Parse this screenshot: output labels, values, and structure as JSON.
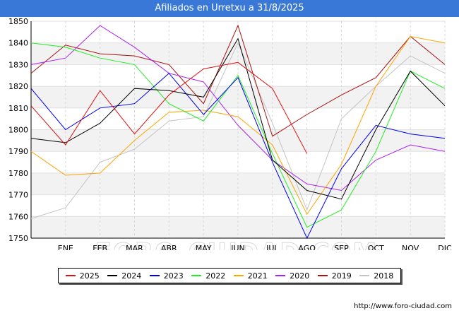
{
  "page": {
    "title": "Afiliados en Urretxu a 31/8/2025",
    "footer": "http://www.foro-ciudad.com",
    "watermark": "FORO-CIUDAD.COM"
  },
  "chart_data": {
    "type": "line",
    "title": "Afiliados en Urretxu a 31/8/2025",
    "xlabel": "",
    "ylabel": "",
    "categories": [
      "",
      "ENE",
      "FEB",
      "MAR",
      "ABR",
      "MAY",
      "JUN",
      "JUL",
      "AGO",
      "SEP",
      "OCT",
      "NOV",
      "DIC"
    ],
    "ylim": [
      1750,
      1850
    ],
    "yticks": [
      1750,
      1760,
      1770,
      1780,
      1790,
      1800,
      1810,
      1820,
      1830,
      1840,
      1850
    ],
    "legend_position": "bottom",
    "series": [
      {
        "name": "2025",
        "color": "#dd1111",
        "values": [
          1811,
          1793,
          1818,
          1798,
          1816,
          1828,
          1831,
          1819,
          1789,
          null,
          null,
          null,
          null
        ]
      },
      {
        "name": "2024",
        "color": "#000000",
        "values": [
          1796,
          1794,
          1803,
          1819,
          1818,
          1815,
          1842,
          1786,
          1772,
          1768,
          1800,
          1827,
          1811
        ]
      },
      {
        "name": "2023",
        "color": "#0000ee",
        "values": [
          1819,
          1800,
          1810,
          1812,
          1826,
          1807,
          1824,
          1785,
          1749,
          1782,
          1802,
          1798,
          1796
        ]
      },
      {
        "name": "2022",
        "color": "#22ee22",
        "values": [
          1840,
          1838,
          1833,
          1830,
          1812,
          1804,
          1825,
          1789,
          1755,
          1763,
          1790,
          1827,
          1819
        ]
      },
      {
        "name": "2021",
        "color": "#ffa500",
        "values": [
          1790,
          1779,
          1780,
          1795,
          1808,
          1809,
          1806,
          1793,
          1761,
          1784,
          1820,
          1843,
          1840
        ]
      },
      {
        "name": "2020",
        "color": "#aa22ee",
        "values": [
          1830,
          1833,
          1848,
          1838,
          1826,
          1822,
          1802,
          1786,
          1775,
          1772,
          1786,
          1793,
          1790
        ]
      },
      {
        "name": "2019",
        "color": "#aa1111",
        "values": [
          1826,
          1839,
          1835,
          1834,
          1830,
          1812,
          1848,
          1797,
          1807,
          1816,
          1824,
          1843,
          1830
        ]
      },
      {
        "name": "2018",
        "color": "#c4c4c4",
        "values": [
          1759,
          1764,
          1785,
          1791,
          1804,
          1806,
          1840,
          1803,
          1763,
          1805,
          1820,
          1834,
          1826
        ]
      }
    ]
  }
}
